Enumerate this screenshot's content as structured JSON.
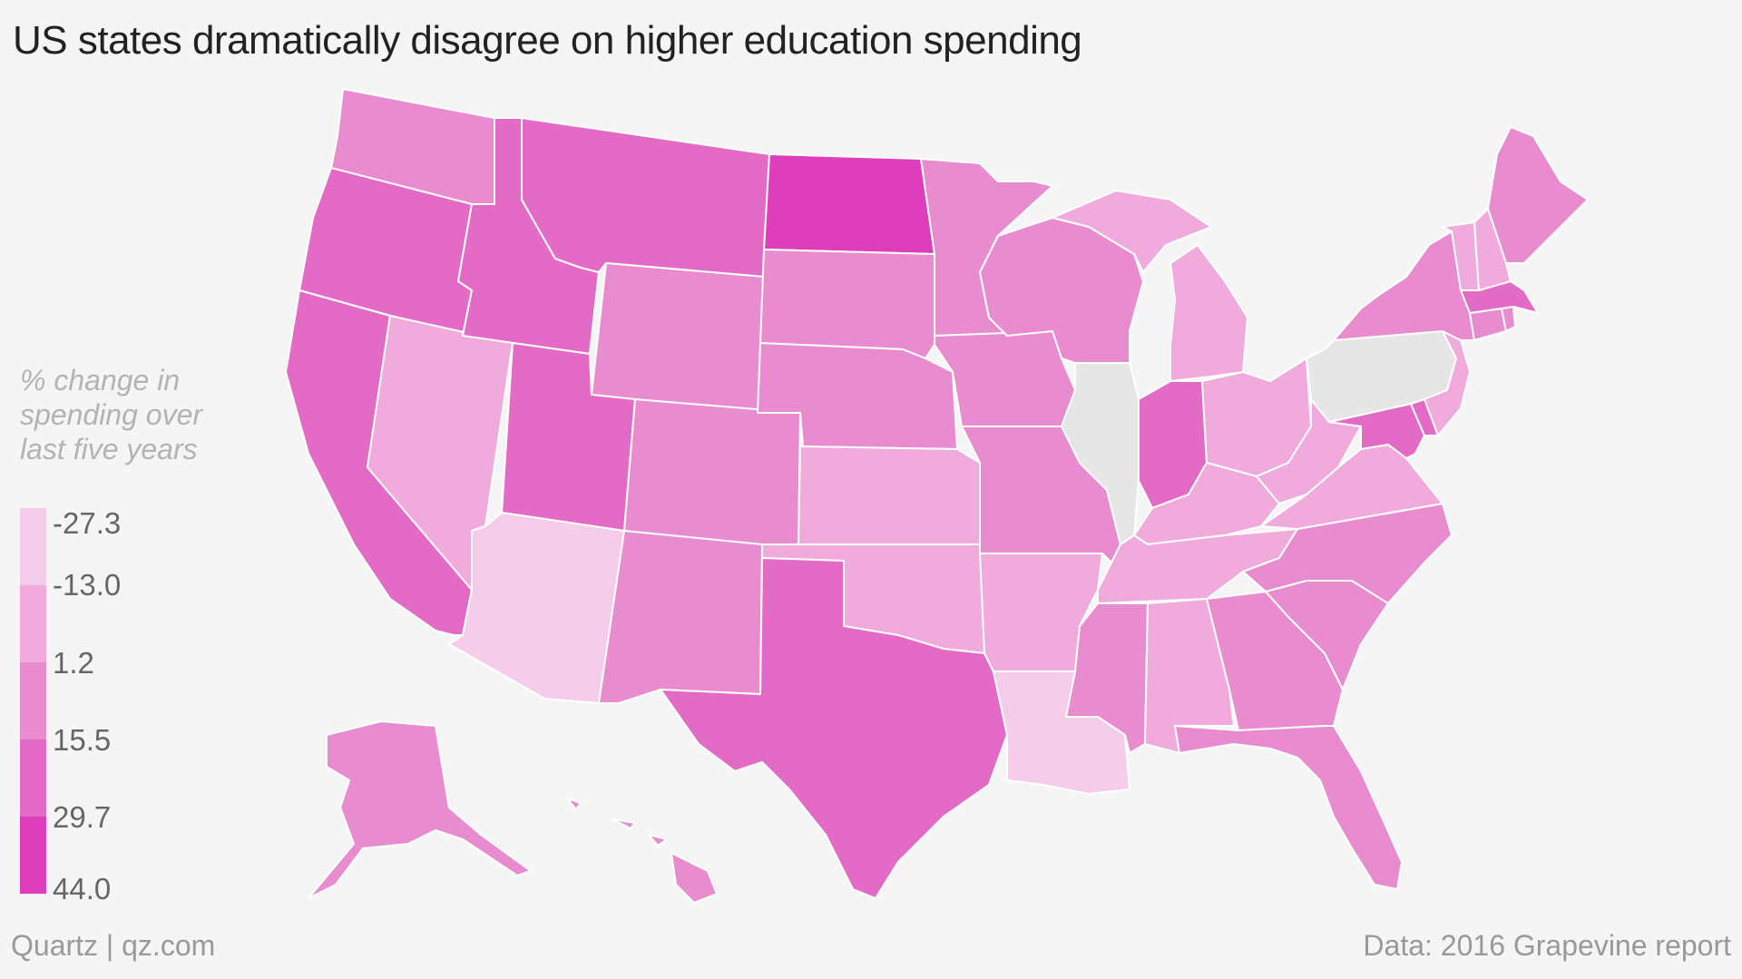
{
  "title": "US states dramatically disagree on higher education spending",
  "legend": {
    "title_lines": [
      "% change in",
      "spending over",
      "last five years"
    ],
    "labels": [
      "-27.3",
      "-13.0",
      "1.2",
      "15.5",
      "29.7",
      "44.0"
    ],
    "colors": [
      "#f5cdea",
      "#f0aadc",
      "#e98ccf",
      "#e46bc5",
      "#de3ebc"
    ]
  },
  "no_data_color": "#e6e6e6",
  "map_data": {
    "type": "choropleth",
    "bin_colors": [
      "#f5cdea",
      "#f0aadc",
      "#e98ccf",
      "#e46bc5",
      "#de3ebc"
    ],
    "states": {
      "WA": 2,
      "OR": 3,
      "CA": 3,
      "ID": 3,
      "MT": 3,
      "NV": 1,
      "UT": 3,
      "AZ": 0,
      "WY": 2,
      "CO": 2,
      "NM": 2,
      "ND": 4,
      "SD": 2,
      "NE": 2,
      "KS": 1,
      "OK": 1,
      "TX": 3,
      "MN": 2,
      "IA": 2,
      "MO": 2,
      "AR": 1,
      "LA": 0,
      "WI": 2,
      "IL": null,
      "MI": 1,
      "IN": 3,
      "OH": 1,
      "KY": 1,
      "TN": 1,
      "MS": 2,
      "AL": 1,
      "GA": 2,
      "FL": 2,
      "SC": 2,
      "NC": 2,
      "VA": 1,
      "WV": 1,
      "PA": null,
      "NY": 2,
      "VT": 1,
      "NH": 1,
      "ME": 2,
      "MA": 3,
      "CT": 2,
      "RI": 2,
      "NJ": 1,
      "DE": 3,
      "MD": 3,
      "AK": 2,
      "HI": 2
    }
  },
  "footer": {
    "source_left": "Quartz | qz.com",
    "source_right": "Data: 2016 Grapevine report"
  }
}
